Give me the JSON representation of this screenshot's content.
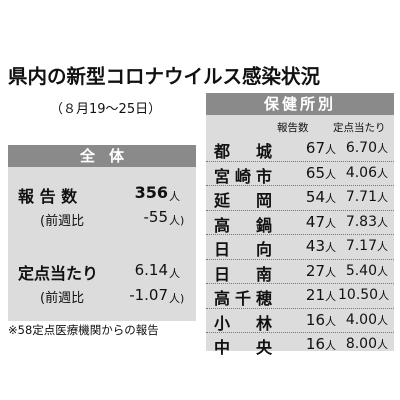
{
  "title": "県内の新型コロナウイルス感染状況",
  "period": "（８月19〜25日）",
  "overall": {
    "header": "全体",
    "reports_label": "報 告 数",
    "reports_value": "356",
    "reports_unit": "人",
    "reports_wow_label": "(前週比",
    "reports_wow_value": "-55",
    "reports_wow_unit": "人)",
    "sentinel_label": "定点当たり",
    "sentinel_value": "6.14",
    "sentinel_unit": "人",
    "sentinel_wow_label": "(前週比",
    "sentinel_wow_value": "-1.07",
    "sentinel_wow_unit": "人)"
  },
  "health_centers": {
    "header": "保健所別",
    "col_reports": "報告数",
    "col_per_sentinel": "定点当たり",
    "rows": [
      {
        "name": "都 城",
        "count": "67",
        "count_unit": "人",
        "rate": "6.70",
        "rate_unit": "人"
      },
      {
        "name": "宮崎市",
        "count": "65",
        "count_unit": "人",
        "rate": "4.06",
        "rate_unit": "人"
      },
      {
        "name": "延 岡",
        "count": "54",
        "count_unit": "人",
        "rate": "7.71",
        "rate_unit": "人"
      },
      {
        "name": "高 鍋",
        "count": "47",
        "count_unit": "人",
        "rate": "7.83",
        "rate_unit": "人"
      },
      {
        "name": "日 向",
        "count": "43",
        "count_unit": "人",
        "rate": "7.17",
        "rate_unit": "人"
      },
      {
        "name": "日 南",
        "count": "27",
        "count_unit": "人",
        "rate": "5.40",
        "rate_unit": "人"
      },
      {
        "name": "高千穂",
        "count": "21",
        "count_unit": "人",
        "rate": "10.50",
        "rate_unit": "人"
      },
      {
        "name": "小 林",
        "count": "16",
        "count_unit": "人",
        "rate": "4.00",
        "rate_unit": "人"
      },
      {
        "name": "中 央",
        "count": "16",
        "count_unit": "人",
        "rate": "8.00",
        "rate_unit": "人"
      }
    ]
  },
  "footnote": "※58定点医療機関からの報告"
}
